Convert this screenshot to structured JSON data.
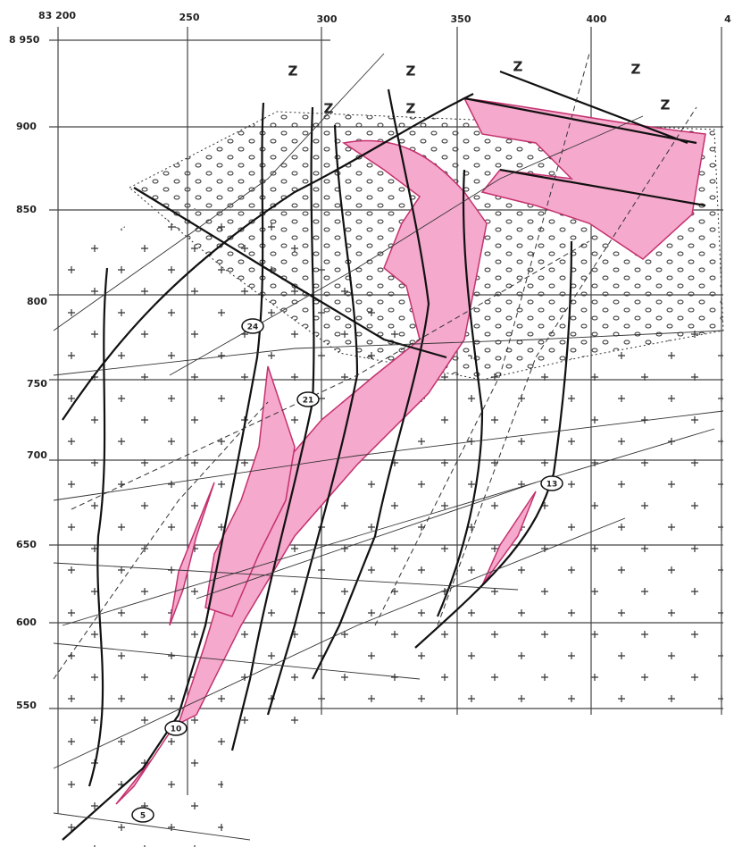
{
  "grid": {
    "top_labels": [
      "83 200",
      "250",
      "300",
      "350",
      "400",
      "4"
    ],
    "left_labels": [
      "8 950",
      "900",
      "850",
      "800",
      "750",
      "700",
      "650",
      "600",
      "550"
    ]
  },
  "zone_labels": [
    "Z",
    "Z",
    "Z",
    "Z",
    "Z",
    "Z",
    "Z"
  ],
  "drillholes": [
    "24",
    "21",
    "13",
    "10",
    "5"
  ]
}
